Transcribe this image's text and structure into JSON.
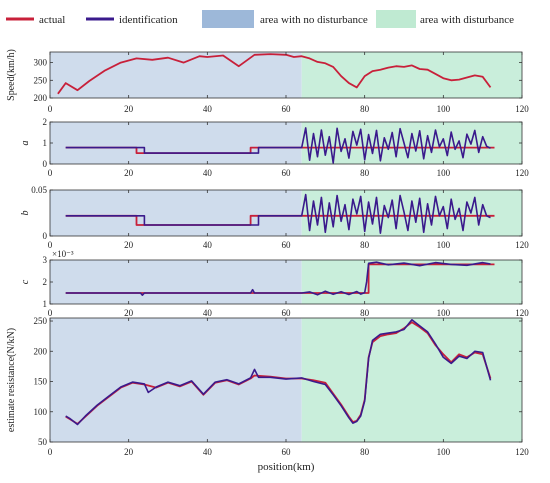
{
  "legend": {
    "actual": "actual",
    "identification": "identification",
    "no_disturbance": "area with no disturbance",
    "disturbance": "area with disturbance"
  },
  "colors": {
    "actual": "#c8203a",
    "identification": "#3a1a8c",
    "no_disturbance_bg": "#cfdcec",
    "disturbance_bg": "#c9eedb",
    "legend_no_disturbance": "#9db8d9",
    "legend_disturbance": "#bfead2"
  },
  "disturbance_start_km": 64,
  "chart_data": [
    {
      "type": "line",
      "ylabel": "Speed(km/h)",
      "xlim": [
        0,
        120
      ],
      "ylim": [
        200,
        330
      ],
      "yticks": [
        200,
        250,
        300
      ],
      "ytick_labels": [
        "200",
        "250",
        "300"
      ],
      "xticks": [
        0,
        20,
        40,
        60,
        80,
        100,
        120
      ],
      "xtick_labels": [
        "0",
        "20",
        "40",
        "60",
        "80",
        "100",
        "120"
      ],
      "series": [
        {
          "name": "actual",
          "role": "actual",
          "x": [
            2,
            4,
            7,
            10,
            14,
            18,
            22,
            26,
            30,
            34,
            38,
            40,
            44,
            48,
            52,
            56,
            60,
            62,
            64,
            66,
            68,
            70,
            72,
            74,
            76,
            78,
            80,
            82,
            84,
            86,
            88,
            90,
            92,
            94,
            96,
            98,
            100,
            102,
            104,
            106,
            108,
            110,
            112
          ],
          "y": [
            212,
            242,
            222,
            248,
            278,
            300,
            312,
            308,
            314,
            300,
            318,
            316,
            320,
            290,
            322,
            324,
            322,
            316,
            318,
            312,
            302,
            298,
            288,
            262,
            242,
            230,
            262,
            276,
            280,
            286,
            290,
            288,
            292,
            282,
            280,
            268,
            256,
            250,
            252,
            258,
            264,
            260,
            230
          ]
        }
      ]
    },
    {
      "type": "line",
      "ylabel": "a",
      "xlim": [
        0,
        120
      ],
      "ylim": [
        0,
        2
      ],
      "yticks": [
        0,
        1,
        2
      ],
      "ytick_labels": [
        "0",
        "1",
        "2"
      ],
      "xticks": [
        0,
        20,
        40,
        60,
        80,
        100,
        120
      ],
      "xtick_labels": [
        "0",
        "20",
        "40",
        "60",
        "80",
        "100",
        "120"
      ],
      "series": [
        {
          "name": "actual",
          "role": "actual",
          "x": [
            4,
            22,
            22,
            51,
            51,
            113
          ],
          "y": [
            0.78,
            0.78,
            0.52,
            0.52,
            0.78,
            0.78
          ]
        },
        {
          "name": "identification",
          "role": "identification",
          "x": [
            4,
            24,
            24,
            53,
            53,
            64,
            65,
            66,
            67,
            68,
            69,
            70,
            71,
            72,
            73,
            74,
            75,
            76,
            77,
            78,
            79,
            80,
            81,
            82,
            83,
            84,
            85,
            86,
            87,
            88,
            89,
            90,
            91,
            92,
            93,
            94,
            95,
            96,
            97,
            98,
            99,
            100,
            101,
            102,
            103,
            104,
            105,
            106,
            107,
            108,
            109,
            110,
            111,
            112
          ],
          "y": [
            0.78,
            0.78,
            0.52,
            0.52,
            0.78,
            0.78,
            1.72,
            0.18,
            1.45,
            0.35,
            1.62,
            0.42,
            1.3,
            0.05,
            1.7,
            0.6,
            1.2,
            0.28,
            1.55,
            0.9,
            1.65,
            0.2,
            1.4,
            0.5,
            1.6,
            0.15,
            1.25,
            0.7,
            1.5,
            0.35,
            1.68,
            1.0,
            0.3,
            1.45,
            0.62,
            1.58,
            0.25,
            1.35,
            0.55,
            1.62,
            0.82,
            1.2,
            0.4,
            1.52,
            0.7,
            1.1,
            0.3,
            1.42,
            0.95,
            1.6,
            0.55,
            1.3,
            0.85,
            0.75
          ]
        }
      ]
    },
    {
      "type": "line",
      "ylabel": "b",
      "xlim": [
        0,
        120
      ],
      "ylim": [
        0,
        0.05
      ],
      "yticks": [
        0,
        0.05
      ],
      "ytick_labels": [
        "0",
        "0.05"
      ],
      "xticks": [
        0,
        20,
        40,
        60,
        80,
        100,
        120
      ],
      "xtick_labels": [
        "0",
        "20",
        "40",
        "60",
        "80",
        "100",
        "120"
      ],
      "series": [
        {
          "name": "actual",
          "role": "actual",
          "x": [
            4,
            22,
            22,
            51,
            51,
            113
          ],
          "y": [
            0.022,
            0.022,
            0.012,
            0.012,
            0.022,
            0.022
          ]
        },
        {
          "name": "identification",
          "role": "identification",
          "x": [
            4,
            24,
            24,
            53,
            53,
            64,
            65,
            66,
            67,
            68,
            69,
            70,
            71,
            72,
            73,
            74,
            75,
            76,
            77,
            78,
            79,
            80,
            81,
            82,
            83,
            84,
            85,
            86,
            87,
            88,
            89,
            90,
            91,
            92,
            93,
            94,
            95,
            96,
            97,
            98,
            99,
            100,
            101,
            102,
            103,
            104,
            105,
            106,
            107,
            108,
            109,
            110,
            111,
            112
          ],
          "y": [
            0.022,
            0.022,
            0.012,
            0.012,
            0.022,
            0.022,
            0.045,
            0.006,
            0.038,
            0.012,
            0.042,
            0.004,
            0.036,
            0.01,
            0.044,
            0.016,
            0.034,
            0.007,
            0.04,
            0.024,
            0.043,
            0.005,
            0.037,
            0.013,
            0.042,
            0.003,
            0.033,
            0.02,
            0.039,
            0.008,
            0.044,
            0.026,
            0.006,
            0.038,
            0.015,
            0.041,
            0.004,
            0.035,
            0.012,
            0.043,
            0.022,
            0.032,
            0.008,
            0.04,
            0.018,
            0.03,
            0.006,
            0.037,
            0.025,
            0.042,
            0.012,
            0.034,
            0.022,
            0.02
          ]
        }
      ]
    },
    {
      "type": "line",
      "ylabel": "c",
      "y_multiplier": "×10⁻³",
      "xlim": [
        0,
        120
      ],
      "ylim": [
        1,
        3
      ],
      "yticks": [
        1,
        2,
        3
      ],
      "ytick_labels": [
        "1",
        "2",
        "3"
      ],
      "xticks": [
        0,
        20,
        40,
        60,
        80,
        100,
        120
      ],
      "xtick_labels": [
        "0",
        "20",
        "40",
        "60",
        "80",
        "100",
        "120"
      ],
      "series": [
        {
          "name": "actual",
          "role": "actual",
          "x": [
            4,
            81,
            81,
            113
          ],
          "y": [
            1.5,
            1.5,
            2.8,
            2.8
          ]
        },
        {
          "name": "identification",
          "role": "identification",
          "x": [
            4,
            23,
            23.5,
            24,
            51,
            51.5,
            52,
            64,
            66,
            68,
            70,
            72,
            74,
            76,
            78,
            79,
            80,
            80.5,
            81,
            83,
            86,
            90,
            94,
            98,
            102,
            106,
            110,
            112
          ],
          "y": [
            1.5,
            1.5,
            1.4,
            1.5,
            1.5,
            1.65,
            1.5,
            1.5,
            1.55,
            1.42,
            1.58,
            1.44,
            1.56,
            1.43,
            1.57,
            1.45,
            1.52,
            2.0,
            2.85,
            2.9,
            2.78,
            2.86,
            2.74,
            2.88,
            2.8,
            2.76,
            2.88,
            2.82
          ]
        }
      ]
    },
    {
      "type": "line",
      "ylabel": "estimate resistance(N/kN)",
      "xlabel": "position(km)",
      "xlim": [
        0,
        120
      ],
      "ylim": [
        50,
        255
      ],
      "yticks": [
        50,
        100,
        150,
        200,
        250
      ],
      "ytick_labels": [
        "50",
        "100",
        "150",
        "200",
        "250"
      ],
      "xticks": [
        0,
        20,
        40,
        60,
        80,
        100,
        120
      ],
      "xtick_labels": [
        "0",
        "20",
        "40",
        "60",
        "80",
        "100",
        "120"
      ],
      "series": [
        {
          "name": "actual",
          "role": "actual",
          "x": [
            4,
            5,
            7,
            9,
            12,
            15,
            18,
            21,
            24,
            27,
            30,
            33,
            36,
            39,
            42,
            45,
            48,
            51,
            52,
            56,
            60,
            64,
            67,
            70,
            72,
            74,
            76,
            77,
            78,
            79,
            80,
            81,
            82,
            84,
            86,
            88,
            90,
            92,
            94,
            96,
            98,
            100,
            102,
            104,
            106,
            108,
            110,
            112
          ],
          "y": [
            92,
            88,
            80,
            92,
            110,
            125,
            140,
            148,
            145,
            140,
            148,
            142,
            150,
            128,
            148,
            152,
            145,
            155,
            160,
            158,
            155,
            155,
            152,
            148,
            130,
            112,
            92,
            83,
            85,
            95,
            120,
            190,
            215,
            225,
            228,
            230,
            238,
            248,
            240,
            230,
            210,
            195,
            182,
            195,
            190,
            198,
            195,
            155
          ]
        },
        {
          "name": "identification",
          "role": "identification",
          "x": [
            4,
            5,
            7,
            9,
            12,
            15,
            18,
            21,
            24,
            25,
            27,
            30,
            33,
            36,
            39,
            42,
            45,
            48,
            51,
            52,
            53,
            56,
            60,
            64,
            67,
            70,
            72,
            74,
            76,
            77,
            78,
            79,
            80,
            81,
            82,
            84,
            86,
            88,
            90,
            92,
            94,
            96,
            98,
            100,
            102,
            104,
            106,
            108,
            110,
            112
          ],
          "y": [
            93,
            89,
            79,
            93,
            111,
            126,
            141,
            149,
            146,
            132,
            141,
            149,
            143,
            151,
            129,
            149,
            153,
            146,
            156,
            170,
            157,
            157,
            154,
            156,
            150,
            145,
            128,
            110,
            90,
            81,
            84,
            93,
            118,
            188,
            218,
            228,
            230,
            232,
            236,
            252,
            242,
            232,
            212,
            190,
            180,
            192,
            188,
            200,
            198,
            152
          ]
        }
      ]
    }
  ]
}
